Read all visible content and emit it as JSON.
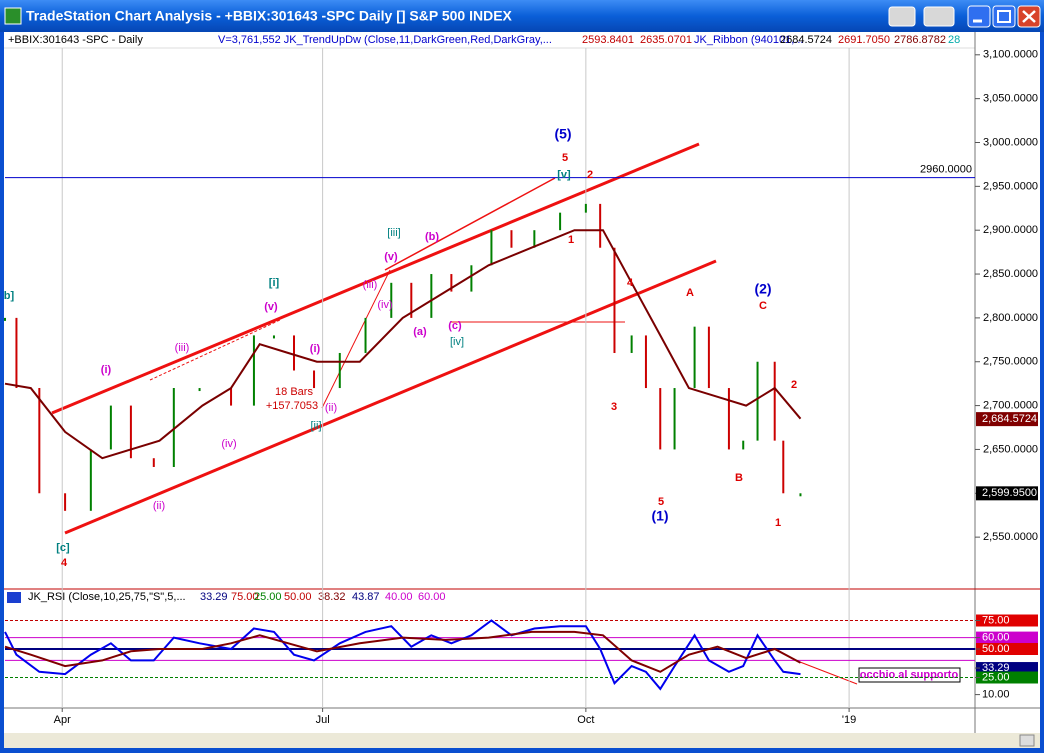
{
  "window": {
    "title": "TradeStation Chart Analysis - +BBIX:301643 -SPC Daily [] S&P 500 INDEX"
  },
  "price_chart": {
    "type": "line",
    "header": [
      "+BBIX:301643 -SPC - Daily",
      "V=3,761,552  JK_TrendUpDw (Close,11,DarkGreen,Red,DarkGray,...",
      "2593.8401",
      "2635.0701",
      "JK_Ribbon (940101,...",
      "2684.5724",
      "2691.7050",
      "2786.8782",
      "28"
    ],
    "header_colors": [
      "#000000",
      "#0000cc",
      "#c00000",
      "#c00000",
      "#0000cc",
      "#000000",
      "#c00000",
      "#800000",
      "#00aaaa"
    ],
    "xlim": [
      71,
      410
    ],
    "xticks": [
      {
        "value": 91,
        "label": "Apr"
      },
      {
        "value": 182,
        "label": "Jul"
      },
      {
        "value": 274,
        "label": "Oct"
      },
      {
        "value": 366,
        "label": "'19"
      }
    ],
    "ylim": [
      2492,
      3126
    ],
    "yticks": [
      {
        "value": 3100,
        "label": "3,100.0000"
      },
      {
        "value": 3050,
        "label": "3,050.0000"
      },
      {
        "value": 3000,
        "label": "3,000.0000"
      },
      {
        "value": 2950,
        "label": "2,950.0000"
      },
      {
        "value": 2900,
        "label": "2,900.0000"
      },
      {
        "value": 2850,
        "label": "2,850.0000"
      },
      {
        "value": 2800,
        "label": "2,800.0000"
      },
      {
        "value": 2750,
        "label": "2,750.0000"
      },
      {
        "value": 2700,
        "label": "2,700.0000"
      },
      {
        "value": 2650,
        "label": "2,650.0000"
      },
      {
        "value": 2600,
        "label": "2,600.0000"
      },
      {
        "value": 2550,
        "label": "2,550.0000"
      }
    ],
    "hline": {
      "value": 2960,
      "label": "2960.0000",
      "color": "#0000cc"
    },
    "markers": [
      {
        "value": 2684.5724,
        "label": "2,684.5724",
        "color": "#800000"
      },
      {
        "value": 2599.95,
        "label": "2,599.9500",
        "color": "#000000"
      }
    ],
    "series": [
      {
        "name": "Price",
        "color": "#008000",
        "down_color": "#cc0000",
        "x": [
          71,
          75,
          83,
          92,
          101,
          108,
          115,
          123,
          130,
          139,
          150,
          158,
          165,
          172,
          179,
          188,
          197,
          206,
          213,
          220,
          227,
          234,
          241,
          248,
          256,
          265,
          274,
          279,
          284,
          290,
          295,
          300,
          305,
          312,
          317,
          324,
          329,
          334,
          340,
          343,
          349
        ],
        "values": [
          2800,
          2720,
          2600,
          2580,
          2650,
          2700,
          2640,
          2630,
          2720,
          2720,
          2700,
          2780,
          2780,
          2740,
          2720,
          2760,
          2800,
          2840,
          2800,
          2850,
          2830,
          2860,
          2900,
          2880,
          2900,
          2920,
          2930,
          2880,
          2760,
          2780,
          2720,
          2650,
          2720,
          2790,
          2720,
          2650,
          2660,
          2750,
          2660,
          2600,
          2600
        ]
      },
      {
        "name": "JK_Ribbon",
        "color": "#7a0000",
        "x": [
          71,
          80,
          92,
          105,
          115,
          125,
          140,
          150,
          160,
          170,
          180,
          195,
          210,
          225,
          240,
          255,
          270,
          280,
          290,
          300,
          310,
          320,
          330,
          340,
          349
        ],
        "values": [
          2725,
          2720,
          2670,
          2640,
          2650,
          2660,
          2700,
          2720,
          2770,
          2760,
          2750,
          2750,
          2800,
          2830,
          2860,
          2880,
          2900,
          2900,
          2840,
          2780,
          2720,
          2710,
          2700,
          2720,
          2685
        ]
      }
    ],
    "annotations": [
      {
        "text": "(5)",
        "color": "#0000cc"
      },
      {
        "text": "5",
        "color": "#dd0000"
      },
      {
        "text": "[v]",
        "color": "#008080"
      },
      {
        "text": "2",
        "color": "#dd0000"
      },
      {
        "text": "1",
        "color": "#dd0000"
      },
      {
        "text": "[iii]",
        "color": "#008080"
      },
      {
        "text": "(b)",
        "color": "#cc00cc"
      },
      {
        "text": "(v)",
        "color": "#cc00cc"
      },
      {
        "text": "(iii)",
        "color": "#cc00cc"
      },
      {
        "text": "(iv)",
        "color": "#cc00cc"
      },
      {
        "text": "(a)",
        "color": "#cc00cc"
      },
      {
        "text": "(c)",
        "color": "#cc00cc"
      },
      {
        "text": "[iv]",
        "color": "#008080"
      },
      {
        "text": "[i]",
        "color": "#008080"
      },
      {
        "text": "(v)",
        "color": "#cc00cc"
      },
      {
        "text": "(i)",
        "color": "#cc00cc"
      },
      {
        "text": "(ii)",
        "color": "#cc00cc"
      },
      {
        "text": "[ii]",
        "color": "#008080"
      },
      {
        "text": "(i)",
        "color": "#cc00cc"
      },
      {
        "text": "(iii)",
        "color": "#cc00cc"
      },
      {
        "text": "(iv)",
        "color": "#cc00cc"
      },
      {
        "text": "(ii)",
        "color": "#cc00cc"
      },
      {
        "text": "[c]",
        "color": "#008080"
      },
      {
        "text": "4",
        "color": "#dd0000"
      },
      {
        "text": "b]",
        "color": "#008080"
      },
      {
        "text": "18 Bars",
        "color": "#cc0000"
      },
      {
        "text": "+157.7053",
        "color": "#cc0000"
      },
      {
        "text": "4",
        "color": "#dd0000"
      },
      {
        "text": "3",
        "color": "#dd0000"
      },
      {
        "text": "5",
        "color": "#dd0000"
      },
      {
        "text": "(1)",
        "color": "#0000cc"
      },
      {
        "text": "A",
        "color": "#dd0000"
      },
      {
        "text": "B",
        "color": "#dd0000"
      },
      {
        "text": "(2)",
        "color": "#0000cc"
      },
      {
        "text": "C",
        "color": "#dd0000"
      },
      {
        "text": "2",
        "color": "#dd0000"
      },
      {
        "text": "1",
        "color": "#dd0000"
      }
    ]
  },
  "rsi_chart": {
    "type": "line",
    "header": [
      "JK_RSI (Close,10,25,75,\"S\",5,...",
      "33.29",
      "75.00",
      "25.00",
      "50.00",
      "38.32",
      "43.87",
      "40.00",
      "60.00"
    ],
    "header_colors": [
      "#000000",
      "#000080",
      "#c00000",
      "#008000",
      "#c00000",
      "#800000",
      "#000080",
      "#cc00cc",
      "#cc00cc"
    ],
    "ylim": [
      0,
      100
    ],
    "yticks": [
      {
        "value": 75,
        "label": "75.00",
        "color": "#e00000"
      },
      {
        "value": 60,
        "label": "60.00",
        "color": "#cc00cc"
      },
      {
        "value": 50,
        "label": "50.00",
        "color": "#e00000"
      },
      {
        "value": 33.29,
        "label": "33.29",
        "color": "#000080"
      },
      {
        "value": 25,
        "label": "25.00",
        "color": "#008000"
      },
      {
        "value": 10,
        "label": "10.00",
        "color": null
      }
    ],
    "hlines": [
      {
        "value": 75,
        "color": "#c00000"
      },
      {
        "value": 60,
        "color": "#cc00cc"
      },
      {
        "value": 50,
        "color": "#000080"
      },
      {
        "value": 40,
        "color": "#cc00cc"
      },
      {
        "value": 25,
        "color": "#008000"
      }
    ],
    "series": [
      {
        "name": "RSI",
        "color": "#0000ee",
        "x": [
          71,
          75,
          83,
          92,
          101,
          108,
          115,
          123,
          130,
          139,
          150,
          158,
          165,
          172,
          179,
          188,
          197,
          206,
          213,
          220,
          227,
          234,
          241,
          248,
          256,
          265,
          274,
          279,
          284,
          290,
          295,
          300,
          305,
          312,
          317,
          324,
          329,
          334,
          340,
          343,
          349
        ],
        "values": [
          65,
          45,
          30,
          28,
          45,
          55,
          40,
          40,
          60,
          55,
          50,
          68,
          65,
          45,
          40,
          55,
          65,
          70,
          52,
          62,
          55,
          62,
          75,
          62,
          68,
          70,
          70,
          50,
          20,
          35,
          30,
          15,
          35,
          62,
          40,
          30,
          35,
          62,
          40,
          30,
          28
        ]
      },
      {
        "name": "RSI avg",
        "color": "#800000",
        "x": [
          71,
          80,
          92,
          105,
          115,
          125,
          140,
          150,
          160,
          170,
          180,
          195,
          210,
          225,
          240,
          255,
          270,
          280,
          290,
          300,
          310,
          320,
          330,
          340,
          349
        ],
        "values": [
          52,
          45,
          35,
          40,
          48,
          50,
          50,
          55,
          62,
          55,
          48,
          55,
          60,
          58,
          60,
          65,
          65,
          62,
          40,
          30,
          45,
          52,
          42,
          50,
          38
        ]
      }
    ],
    "note": "occhio al supporto"
  }
}
